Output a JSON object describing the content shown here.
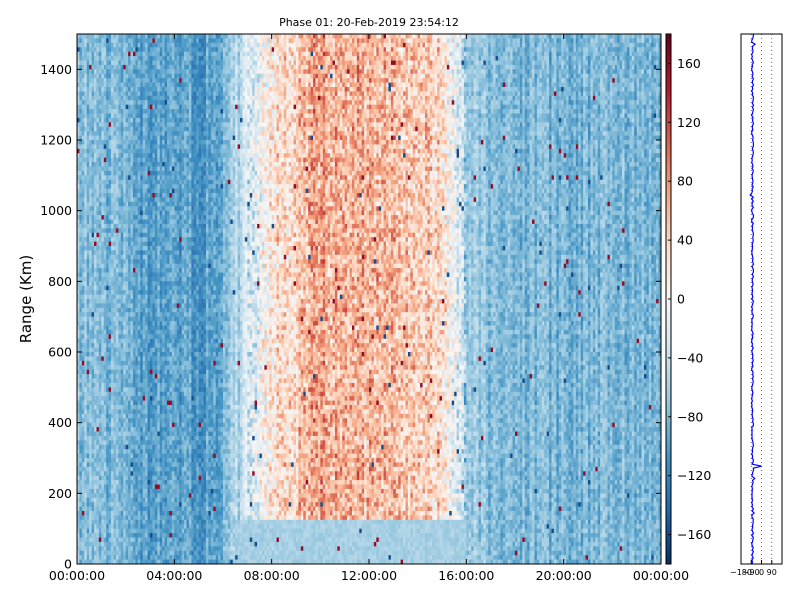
{
  "chart_data": {
    "type": "heatmap",
    "title": "Phase 01: 20-Feb-2019 23:54:12",
    "ylabel": "Range (Km)",
    "xlabel": "",
    "x_ticks": [
      "00:00:00",
      "04:00:00",
      "08:00:00",
      "12:00:00",
      "16:00:00",
      "20:00:00",
      "00:00:00"
    ],
    "x_range_hours": [
      0,
      24
    ],
    "y_ticks": [
      0,
      200,
      400,
      600,
      800,
      1000,
      1200,
      1400
    ],
    "ylim": [
      0,
      1500
    ],
    "colorbar": {
      "colormap": "RdBu_r",
      "range": [
        -180,
        180
      ],
      "ticks": [
        -160,
        -120,
        -80,
        -40,
        0,
        40,
        80,
        120,
        160
      ]
    },
    "time_profile_hours": [
      {
        "t": 0,
        "phase": -75
      },
      {
        "t": 2,
        "phase": -85
      },
      {
        "t": 3,
        "phase": -100
      },
      {
        "t": 4,
        "phase": -90
      },
      {
        "t": 5,
        "phase": -105
      },
      {
        "t": 6,
        "phase": -85
      },
      {
        "t": 7,
        "phase": -30
      },
      {
        "t": 8,
        "phase": 20
      },
      {
        "t": 9,
        "phase": 45
      },
      {
        "t": 10,
        "phase": 70
      },
      {
        "t": 12,
        "phase": 55
      },
      {
        "t": 14,
        "phase": 50
      },
      {
        "t": 15,
        "phase": 35
      },
      {
        "t": 16,
        "phase": -60
      },
      {
        "t": 17,
        "phase": -80
      },
      {
        "t": 20,
        "phase": -85
      },
      {
        "t": 24,
        "phase": -80
      }
    ],
    "side_panel": {
      "type": "line",
      "x_ticks": [
        "−180",
        "−90",
        "0",
        "90"
      ],
      "xlim": [
        -180,
        180
      ],
      "grid": "dotted vertical",
      "color": "#0000ff"
    }
  }
}
